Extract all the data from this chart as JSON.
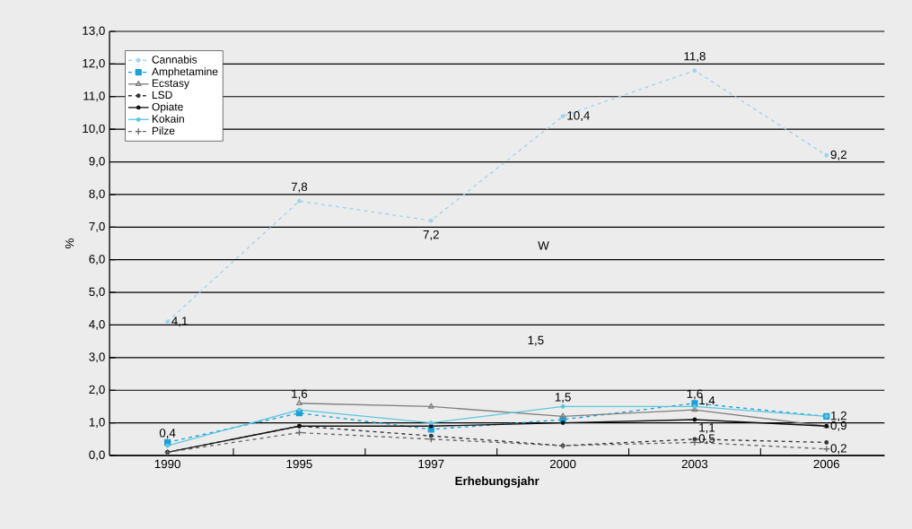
{
  "chart_data": {
    "type": "line",
    "xlabel": "Erhebungsjahr",
    "ylabel": "%",
    "categories": [
      "1990",
      "1995",
      "1997",
      "2000",
      "2003",
      "2006"
    ],
    "ylim": [
      0,
      13
    ],
    "yticks": [
      {
        "value": 0,
        "label": "0,0"
      },
      {
        "value": 1,
        "label": "1,0"
      },
      {
        "value": 2,
        "label": "2,0"
      },
      {
        "value": 3,
        "label": "3,0"
      },
      {
        "value": 4,
        "label": "4,0"
      },
      {
        "value": 5,
        "label": "5,0"
      },
      {
        "value": 6,
        "label": "6,0"
      },
      {
        "value": 7,
        "label": "7,0"
      },
      {
        "value": 8,
        "label": "8,0"
      },
      {
        "value": 9,
        "label": "9,0"
      },
      {
        "value": 10,
        "label": "10,0"
      },
      {
        "value": 11,
        "label": "11,0"
      },
      {
        "value": 12,
        "label": "12,0"
      },
      {
        "value": 13,
        "label": "13,0"
      }
    ],
    "grid": "y",
    "legend": "top left",
    "annotations": [
      "W",
      "1,5"
    ],
    "series": [
      {
        "name": "Cannabis",
        "color": "#9fd4ec",
        "marker": "circle",
        "line_style": "dashed",
        "values": [
          4.1,
          7.8,
          7.2,
          10.4,
          11.8,
          9.2
        ],
        "value_labels": [
          "4,1",
          "7,8",
          "7,2",
          "10,4",
          "11,8",
          "9,2"
        ]
      },
      {
        "name": "Amphetamine",
        "color": "#1b9fd6",
        "marker": "square",
        "line_style": "dashed",
        "values": [
          0.4,
          1.3,
          0.8,
          1.1,
          1.6,
          1.2
        ],
        "value_labels": [
          "0,4",
          null,
          null,
          null,
          "1,6",
          "1,2"
        ]
      },
      {
        "name": "Ecstasy",
        "color": "#808080",
        "marker": "triangle",
        "line_style": "solid",
        "values": [
          null,
          1.6,
          1.5,
          1.2,
          1.4,
          0.9
        ],
        "value_labels": [
          null,
          "1,6",
          null,
          null,
          "1,4",
          "0,9"
        ]
      },
      {
        "name": "LSD",
        "color": "#333333",
        "marker": "circle",
        "line_style": "dashed",
        "values": [
          0.1,
          0.9,
          0.6,
          0.3,
          0.5,
          0.4
        ],
        "value_labels": [
          null,
          null,
          null,
          null,
          "0,5",
          null
        ]
      },
      {
        "name": "Opiate",
        "color": "#111111",
        "marker": "circle",
        "line_style": "solid",
        "values": [
          0.1,
          0.9,
          0.9,
          1.0,
          1.1,
          0.9
        ],
        "value_labels": [
          null,
          null,
          null,
          null,
          "1,1",
          null
        ]
      },
      {
        "name": "Kokain",
        "color": "#5cc6e0",
        "marker": "circle",
        "line_style": "solid",
        "values": [
          0.3,
          1.4,
          1.0,
          1.5,
          1.5,
          1.2
        ],
        "value_labels": [
          null,
          null,
          null,
          "1,5",
          null,
          null
        ]
      },
      {
        "name": "Pilze",
        "color": "#666666",
        "marker": "cross",
        "line_style": "dashed",
        "values": [
          0.1,
          0.7,
          0.5,
          0.3,
          0.4,
          0.2
        ],
        "value_labels": [
          null,
          null,
          null,
          null,
          null,
          "0,2"
        ]
      }
    ]
  }
}
